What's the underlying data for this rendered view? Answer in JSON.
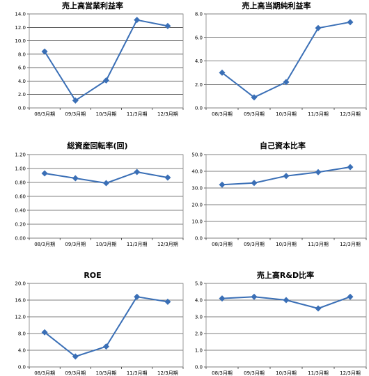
{
  "chart_data": [
    {
      "type": "line",
      "title": "売上高営業利益率",
      "categories": [
        "08/3月期",
        "09/3月期",
        "10/3月期",
        "11/3月期",
        "12/3月期"
      ],
      "values": [
        8.4,
        1.1,
        4.1,
        13.1,
        12.2
      ],
      "ylim": [
        0,
        14
      ],
      "yticks": [
        "0.0",
        "2.0",
        "4.0",
        "6.0",
        "8.0",
        "10.0",
        "12.0",
        "14.0"
      ],
      "grid": true,
      "color": "#3a6fb6"
    },
    {
      "type": "line",
      "title": "売上高当期純利益率",
      "categories": [
        "08/3月期",
        "09/3月期",
        "10/3月期",
        "11/3月期",
        "12/3月期"
      ],
      "values": [
        3.0,
        0.9,
        2.2,
        6.8,
        7.3
      ],
      "ylim": [
        0,
        8
      ],
      "yticks": [
        "0.0",
        "2.0",
        "4.0",
        "6.0",
        "8.0"
      ],
      "grid": true,
      "color": "#3a6fb6"
    },
    {
      "type": "line",
      "title": "総資産回転率(回)",
      "categories": [
        "08/3月期",
        "09/3月期",
        "10/3月期",
        "11/3月期",
        "12/3月期"
      ],
      "values": [
        0.93,
        0.86,
        0.79,
        0.95,
        0.87
      ],
      "ylim": [
        0,
        1.2
      ],
      "yticks": [
        "0.00",
        "0.20",
        "0.40",
        "0.60",
        "0.80",
        "1.00",
        "1.20"
      ],
      "grid": true,
      "color": "#3a6fb6"
    },
    {
      "type": "line",
      "title": "自己資本比率",
      "categories": [
        "08/3月期",
        "09/3月期",
        "10/3月期",
        "11/3月期",
        "12/3月期"
      ],
      "values": [
        32.0,
        33.0,
        37.2,
        39.5,
        42.5
      ],
      "ylim": [
        0,
        50
      ],
      "yticks": [
        "0.0",
        "10.0",
        "20.0",
        "30.0",
        "40.0",
        "50.0"
      ],
      "grid": true,
      "color": "#3a6fb6"
    },
    {
      "type": "line",
      "title": "ROE",
      "categories": [
        "08/3月期",
        "09/3月期",
        "10/3月期",
        "11/3月期",
        "12/3月期"
      ],
      "values": [
        8.3,
        2.5,
        4.9,
        16.8,
        15.6
      ],
      "ylim": [
        0,
        20
      ],
      "yticks": [
        "0.0",
        "4.0",
        "8.0",
        "12.0",
        "16.0",
        "20.0"
      ],
      "grid": true,
      "color": "#3a6fb6"
    },
    {
      "type": "line",
      "title": "売上高R&D比率",
      "categories": [
        "08/3月期",
        "09/3月期",
        "10/3月期",
        "11/3月期",
        "12/3月期"
      ],
      "values": [
        4.1,
        4.2,
        4.0,
        3.5,
        4.2
      ],
      "ylim": [
        0,
        5
      ],
      "yticks": [
        "0.0",
        "1.0",
        "2.0",
        "3.0",
        "4.0",
        "5.0"
      ],
      "grid": true,
      "color": "#3a6fb6"
    }
  ]
}
